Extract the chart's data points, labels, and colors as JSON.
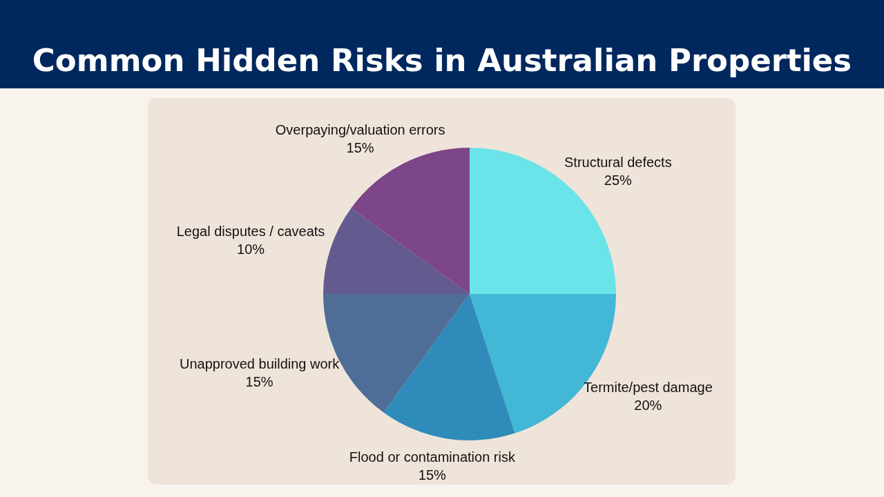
{
  "chart_data": {
    "type": "pie",
    "title": "Common Hidden Risks in Australian Properties",
    "categories": [
      "Structural defects",
      "Termite/pest damage",
      "Flood or contamination risk",
      "Unapproved building work",
      "Legal disputes / caveats",
      "Overpaying/valuation errors"
    ],
    "values": [
      25,
      20,
      15,
      15,
      10,
      15
    ],
    "colors": [
      "#6ae4e8",
      "#43b7d6",
      "#2e8bba",
      "#4e6e98",
      "#635b8f",
      "#7d4688"
    ],
    "value_labels": [
      "25%",
      "20%",
      "15%",
      "15%",
      "10%",
      "15%"
    ],
    "legend": false
  }
}
